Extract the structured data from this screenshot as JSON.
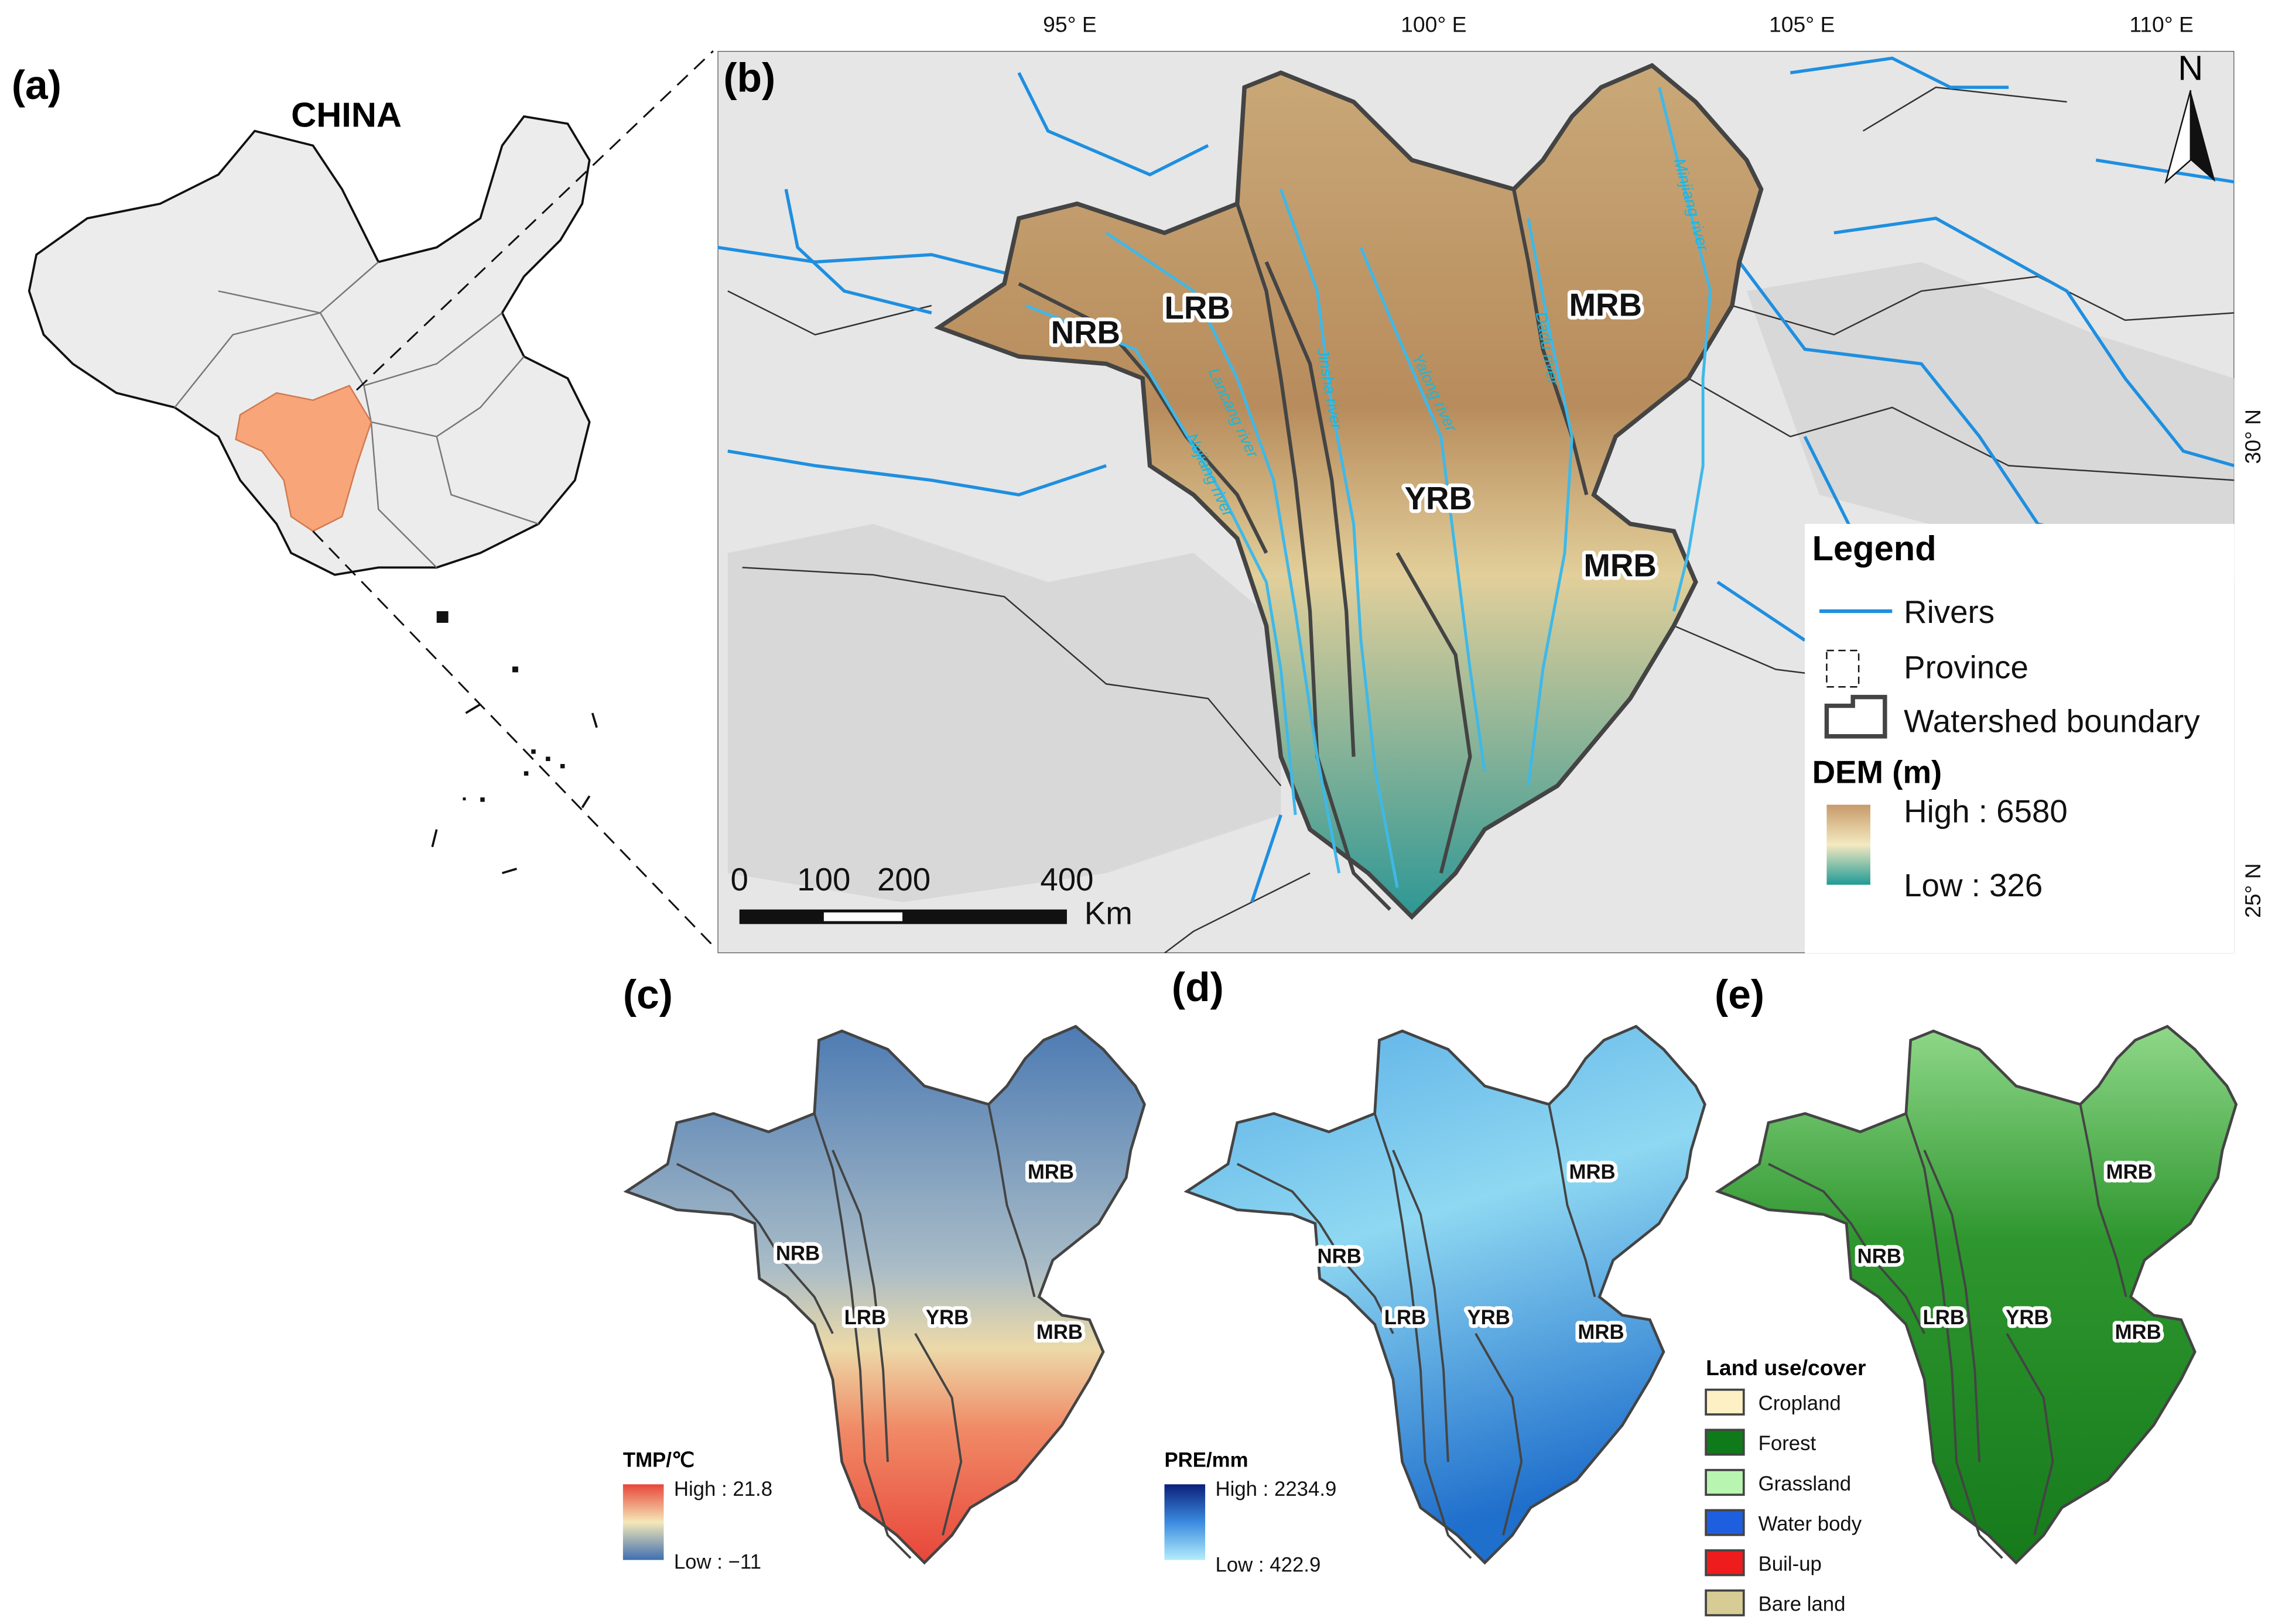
{
  "panel_a": {
    "label": "(a)",
    "title": "CHINA"
  },
  "panel_b": {
    "label": "(b)",
    "longitude_ticks": [
      "95° E",
      "100° E",
      "105° E",
      "110° E"
    ],
    "latitude_ticks": [
      "30° N",
      "25° N"
    ],
    "basins": [
      "NRB",
      "LRB",
      "MRB",
      "YRB",
      "MRB"
    ],
    "rivers": [
      "Minjiang river",
      "Dadu river",
      "Yalong river",
      "Jinsha river",
      "Lancang river",
      "Nujiang river"
    ],
    "north": "N",
    "scale_bar": {
      "ticks": [
        "0",
        "100",
        "200",
        "400"
      ],
      "unit": "Km"
    },
    "legend": {
      "title": "Legend",
      "items": [
        "Rivers",
        "Province",
        "Watershed boundary"
      ],
      "dem_title": "DEM (m)",
      "high": "High : 6580",
      "low": "Low : 326"
    }
  },
  "panel_c": {
    "label": "(c)",
    "basins": [
      "NRB",
      "LRB",
      "YRB",
      "MRB",
      "MRB"
    ],
    "legend_title": "TMP/℃",
    "high": "High : 21.8",
    "low": "Low : −11"
  },
  "panel_d": {
    "label": "(d)",
    "basins": [
      "NRB",
      "LRB",
      "YRB",
      "MRB",
      "MRB"
    ],
    "legend_title": "PRE/mm",
    "high": "High : 2234.9",
    "low": "Low : 422.9"
  },
  "panel_e": {
    "label": "(e)",
    "basins": [
      "NRB",
      "LRB",
      "YRB",
      "MRB",
      "MRB"
    ],
    "legend_title": "Land use/cover",
    "classes": [
      {
        "name": "Cropland",
        "color": "#fdf0c4"
      },
      {
        "name": "Forest",
        "color": "#0f7a1a"
      },
      {
        "name": "Grassland",
        "color": "#b8f5b0"
      },
      {
        "name": "Water body",
        "color": "#1e5fe0"
      },
      {
        "name": "Buil-up",
        "color": "#ee1c1c"
      },
      {
        "name": "Bare land",
        "color": "#d6cc94"
      }
    ]
  }
}
